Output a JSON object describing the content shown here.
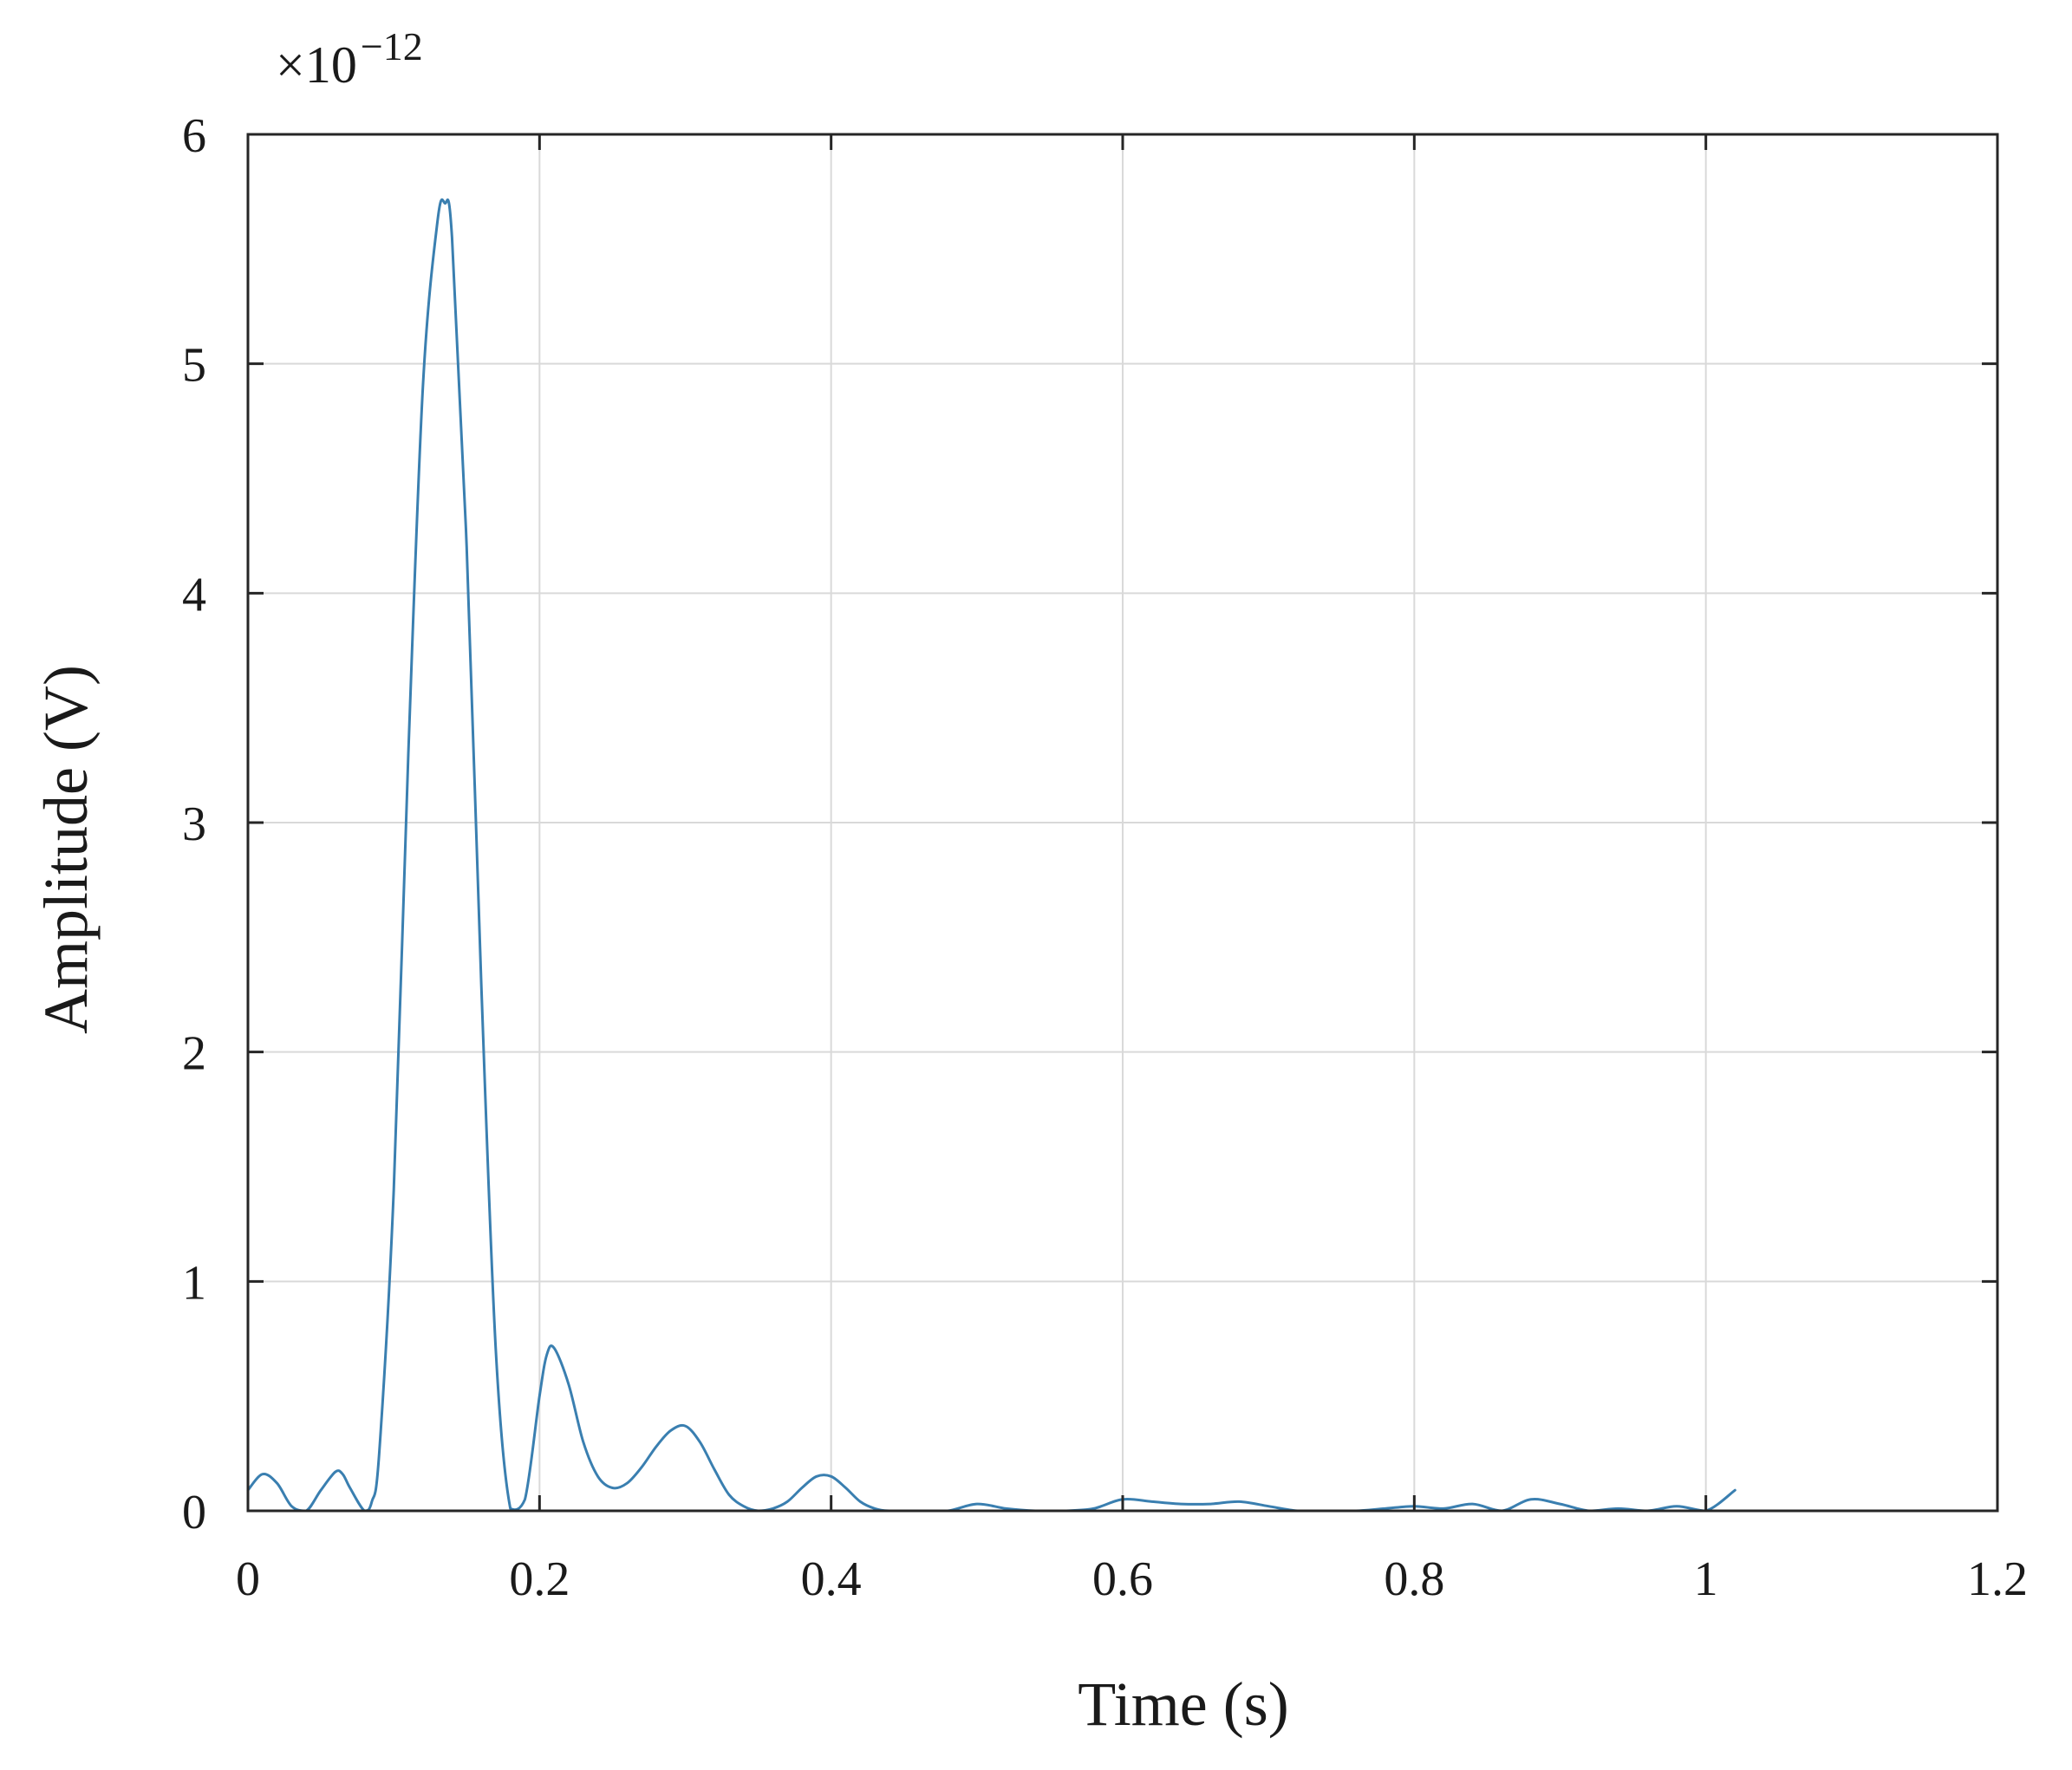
{
  "chart_data": {
    "type": "line",
    "title": "",
    "xlabel": "Time (s)",
    "ylabel": "Amplitude (V)",
    "y_scale_factor": {
      "base": "×10",
      "exponent": "−12"
    },
    "xlim": [
      0,
      1.2
    ],
    "ylim": [
      0,
      6
    ],
    "x_ticks": [
      0,
      0.2,
      0.4,
      0.6,
      0.8,
      1,
      1.2
    ],
    "x_tick_labels": [
      "0",
      "0.2",
      "0.4",
      "0.6",
      "0.8",
      "1",
      "1.2"
    ],
    "y_ticks": [
      0,
      1,
      2,
      3,
      4,
      5,
      6
    ],
    "y_tick_labels": [
      "0",
      "1",
      "2",
      "3",
      "4",
      "5",
      "6"
    ],
    "grid": true,
    "series": [
      {
        "color": "#3a7fb0",
        "x": [
          0.0,
          0.01,
          0.02,
          0.03,
          0.04,
          0.05,
          0.06,
          0.065,
          0.07,
          0.08,
          0.085,
          0.09,
          0.1,
          0.11,
          0.12,
          0.13,
          0.135,
          0.14,
          0.15,
          0.16,
          0.17,
          0.18,
          0.19,
          0.2,
          0.205,
          0.21,
          0.22,
          0.23,
          0.24,
          0.25,
          0.26,
          0.27,
          0.28,
          0.29,
          0.3,
          0.31,
          0.32,
          0.33,
          0.34,
          0.35,
          0.36,
          0.37,
          0.38,
          0.39,
          0.4,
          0.41,
          0.42,
          0.43,
          0.44,
          0.46,
          0.48,
          0.5,
          0.52,
          0.54,
          0.56,
          0.58,
          0.6,
          0.62,
          0.64,
          0.66,
          0.68,
          0.7,
          0.72,
          0.74,
          0.76,
          0.78,
          0.8,
          0.82,
          0.84,
          0.86,
          0.88,
          0.9,
          0.92,
          0.94,
          0.96,
          0.98,
          1.0,
          1.02
        ],
        "y": [
          0.09,
          0.16,
          0.12,
          0.02,
          0.0,
          0.09,
          0.17,
          0.16,
          0.1,
          0.0,
          0.04,
          0.25,
          1.4,
          3.3,
          4.9,
          5.62,
          5.7,
          5.55,
          4.2,
          2.3,
          0.7,
          0.01,
          0.05,
          0.5,
          0.68,
          0.71,
          0.55,
          0.3,
          0.15,
          0.1,
          0.12,
          0.19,
          0.28,
          0.35,
          0.37,
          0.3,
          0.18,
          0.07,
          0.02,
          0.0,
          0.01,
          0.04,
          0.1,
          0.15,
          0.15,
          0.1,
          0.04,
          0.01,
          0.0,
          0.0,
          0.0,
          0.03,
          0.01,
          0.0,
          0.0,
          0.01,
          0.05,
          0.04,
          0.03,
          0.03,
          0.04,
          0.02,
          0.0,
          0.0,
          0.0,
          0.01,
          0.02,
          0.01,
          0.03,
          0.0,
          0.05,
          0.03,
          0.0,
          0.01,
          0.0,
          0.02,
          0.0,
          0.09
        ]
      }
    ]
  }
}
